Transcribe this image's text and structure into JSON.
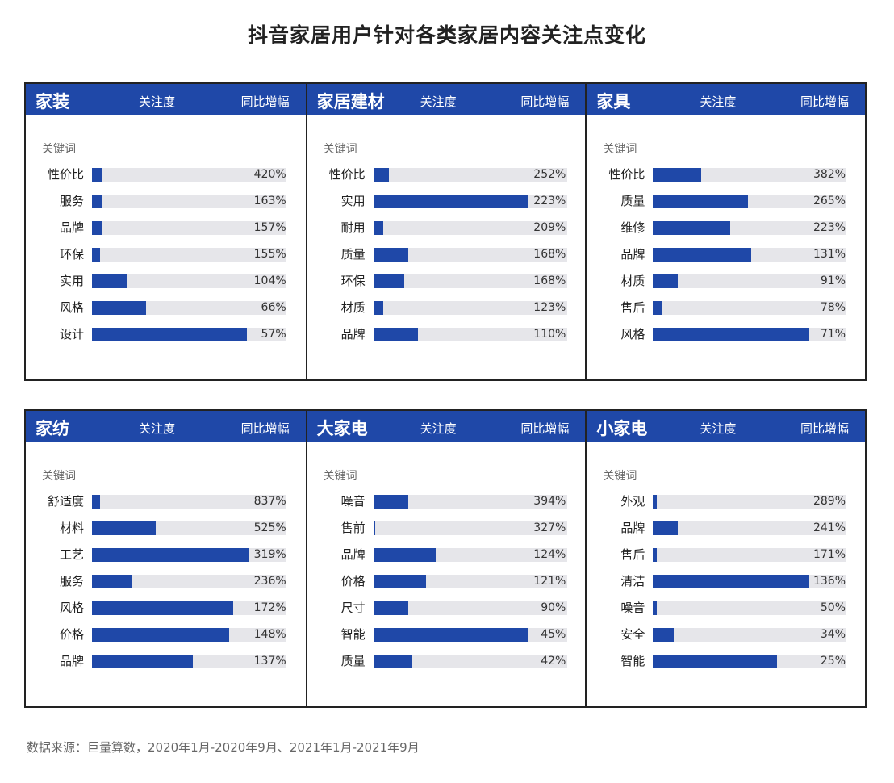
{
  "title": "抖音家居用户针对各类家居内容关注点变化",
  "source": "数据来源：巨量算数，2020年1月-2020年9月、2021年1月-2021年9月",
  "headers": {
    "focus": "关注度",
    "growth": "同比增幅",
    "keyword": "关键词"
  },
  "colors": {
    "bar": "#1f48a8",
    "track": "#e6e6ea",
    "header": "#1f48a8"
  },
  "chart_data": [
    {
      "type": "bar",
      "title": "家装",
      "categories": [
        "性价比",
        "服务",
        "品牌",
        "环保",
        "实用",
        "风格",
        "设计"
      ],
      "focus_fraction": [
        0.05,
        0.05,
        0.05,
        0.04,
        0.18,
        0.28,
        0.8
      ],
      "growth_labels": [
        "420%",
        "163%",
        "157%",
        "155%",
        "104%",
        "66%",
        "57%"
      ]
    },
    {
      "type": "bar",
      "title": "家居建材",
      "categories": [
        "性价比",
        "实用",
        "耐用",
        "质量",
        "环保",
        "材质",
        "品牌"
      ],
      "focus_fraction": [
        0.08,
        0.8,
        0.05,
        0.18,
        0.16,
        0.05,
        0.23
      ],
      "growth_labels": [
        "252%",
        "223%",
        "209%",
        "168%",
        "168%",
        "123%",
        "110%"
      ]
    },
    {
      "type": "bar",
      "title": "家具",
      "categories": [
        "性价比",
        "质量",
        "维修",
        "品牌",
        "材质",
        "售后",
        "风格"
      ],
      "focus_fraction": [
        0.25,
        0.49,
        0.4,
        0.51,
        0.13,
        0.05,
        0.81
      ],
      "growth_labels": [
        "382%",
        "265%",
        "223%",
        "131%",
        "91%",
        "78%",
        "71%"
      ]
    },
    {
      "type": "bar",
      "title": "家纺",
      "categories": [
        "舒适度",
        "材料",
        "工艺",
        "服务",
        "风格",
        "价格",
        "品牌"
      ],
      "focus_fraction": [
        0.04,
        0.33,
        0.81,
        0.21,
        0.73,
        0.71,
        0.52
      ],
      "growth_labels": [
        "837%",
        "525%",
        "319%",
        "236%",
        "172%",
        "148%",
        "137%"
      ]
    },
    {
      "type": "bar",
      "title": "大家电",
      "categories": [
        "噪音",
        "售前",
        "品牌",
        "价格",
        "尺寸",
        "智能",
        "质量"
      ],
      "focus_fraction": [
        0.18,
        0.01,
        0.32,
        0.27,
        0.18,
        0.8,
        0.2
      ],
      "growth_labels": [
        "394%",
        "327%",
        "124%",
        "121%",
        "90%",
        "45%",
        "42%"
      ]
    },
    {
      "type": "bar",
      "title": "小家电",
      "categories": [
        "外观",
        "品牌",
        "售后",
        "清洁",
        "噪音",
        "安全",
        "智能"
      ],
      "focus_fraction": [
        0.02,
        0.13,
        0.02,
        0.81,
        0.02,
        0.11,
        0.64
      ],
      "growth_labels": [
        "289%",
        "241%",
        "171%",
        "136%",
        "50%",
        "34%",
        "25%"
      ]
    }
  ]
}
